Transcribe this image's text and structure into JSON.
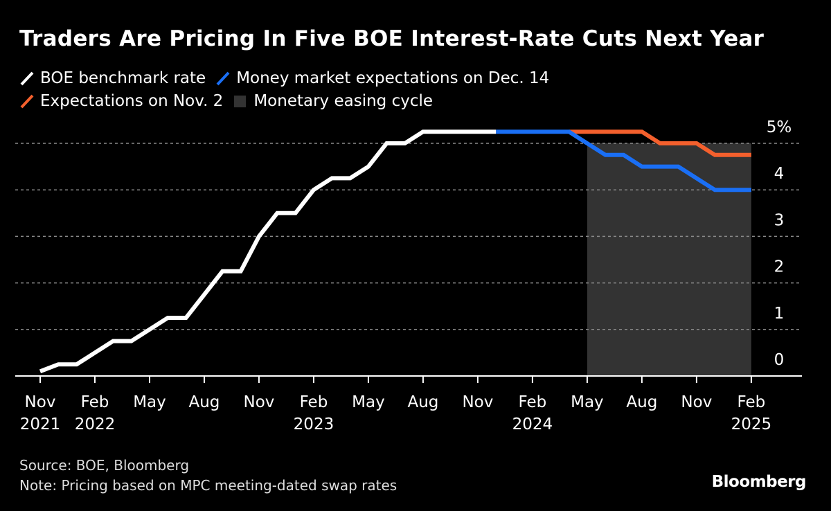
{
  "chart_data": {
    "type": "line",
    "title": "Traders Are Pricing In Five BOE Interest-Rate Cuts Next Year",
    "ylim": [
      0,
      5.3
    ],
    "y_ticks": [
      {
        "value": 0,
        "label": "0"
      },
      {
        "value": 1,
        "label": "1"
      },
      {
        "value": 2,
        "label": "2"
      },
      {
        "value": 3,
        "label": "3"
      },
      {
        "value": 4,
        "label": "4"
      },
      {
        "value": 5,
        "label": "5%"
      }
    ],
    "y_axis_position": "right",
    "grid": "horizontal dotted",
    "xlim": [
      "2021-10-01",
      "2025-04-01"
    ],
    "x_ticks": [
      {
        "date": "2021-11-01",
        "month": "Nov",
        "year": "2021"
      },
      {
        "date": "2022-02-01",
        "month": "Feb",
        "year": "2022"
      },
      {
        "date": "2022-05-01",
        "month": "May",
        "year": ""
      },
      {
        "date": "2022-08-01",
        "month": "Aug",
        "year": ""
      },
      {
        "date": "2022-11-01",
        "month": "Nov",
        "year": ""
      },
      {
        "date": "2023-02-01",
        "month": "Feb",
        "year": "2023"
      },
      {
        "date": "2023-05-01",
        "month": "May",
        "year": ""
      },
      {
        "date": "2023-08-01",
        "month": "Aug",
        "year": ""
      },
      {
        "date": "2023-11-01",
        "month": "Nov",
        "year": ""
      },
      {
        "date": "2024-02-01",
        "month": "Feb",
        "year": "2024"
      },
      {
        "date": "2024-05-01",
        "month": "May",
        "year": ""
      },
      {
        "date": "2024-08-01",
        "month": "Aug",
        "year": ""
      },
      {
        "date": "2024-11-01",
        "month": "Nov",
        "year": ""
      },
      {
        "date": "2025-02-01",
        "month": "Feb",
        "year": "2025"
      }
    ],
    "shaded_region": {
      "name": "Monetary easing cycle",
      "start": "2024-05-01",
      "end": "2025-02-01",
      "ymax": 5,
      "color": "#333333"
    },
    "series": [
      {
        "name": "BOE benchmark rate",
        "color": "#ffffff",
        "points": [
          [
            "2021-11-01",
            0.1
          ],
          [
            "2021-12-01",
            0.25
          ],
          [
            "2022-01-01",
            0.25
          ],
          [
            "2022-02-01",
            0.5
          ],
          [
            "2022-03-01",
            0.75
          ],
          [
            "2022-04-01",
            0.75
          ],
          [
            "2022-05-01",
            1.0
          ],
          [
            "2022-06-01",
            1.25
          ],
          [
            "2022-07-01",
            1.25
          ],
          [
            "2022-08-01",
            1.75
          ],
          [
            "2022-09-01",
            2.25
          ],
          [
            "2022-10-01",
            2.25
          ],
          [
            "2022-11-01",
            3.0
          ],
          [
            "2022-12-01",
            3.5
          ],
          [
            "2023-01-01",
            3.5
          ],
          [
            "2023-02-01",
            4.0
          ],
          [
            "2023-03-01",
            4.25
          ],
          [
            "2023-04-01",
            4.25
          ],
          [
            "2023-05-01",
            4.5
          ],
          [
            "2023-06-01",
            5.0
          ],
          [
            "2023-07-01",
            5.0
          ],
          [
            "2023-08-01",
            5.25
          ],
          [
            "2023-12-01",
            5.25
          ]
        ]
      },
      {
        "name": "Expectations on Nov. 2",
        "color": "#f4602d",
        "points": [
          [
            "2024-04-01",
            5.25
          ],
          [
            "2024-08-01",
            5.25
          ],
          [
            "2024-09-01",
            5.0
          ],
          [
            "2024-11-01",
            5.0
          ],
          [
            "2024-12-01",
            4.75
          ],
          [
            "2025-02-01",
            4.75
          ]
        ]
      },
      {
        "name": "Money market expectations on Dec. 14",
        "color": "#1a6ff5",
        "points": [
          [
            "2023-12-01",
            5.25
          ],
          [
            "2024-04-01",
            5.25
          ],
          [
            "2024-06-01",
            4.75
          ],
          [
            "2024-07-01",
            4.75
          ],
          [
            "2024-08-01",
            4.5
          ],
          [
            "2024-10-01",
            4.5
          ],
          [
            "2024-12-01",
            4.0
          ],
          [
            "2025-02-01",
            4.0
          ]
        ]
      }
    ]
  },
  "legend": [
    {
      "label": "BOE benchmark rate",
      "color": "#ffffff",
      "shape": "line"
    },
    {
      "label": "Money market expectations on Dec. 14",
      "color": "#1a6ff5",
      "shape": "line"
    },
    {
      "label": "Expectations on Nov. 2",
      "color": "#f4602d",
      "shape": "line"
    },
    {
      "label": "Monetary easing cycle",
      "color": "#333333",
      "shape": "square"
    }
  ],
  "footer": {
    "source": "Source: BOE, Bloomberg",
    "note": "Note: Pricing based on MPC meeting-dated swap rates",
    "logo": "Bloomberg"
  }
}
